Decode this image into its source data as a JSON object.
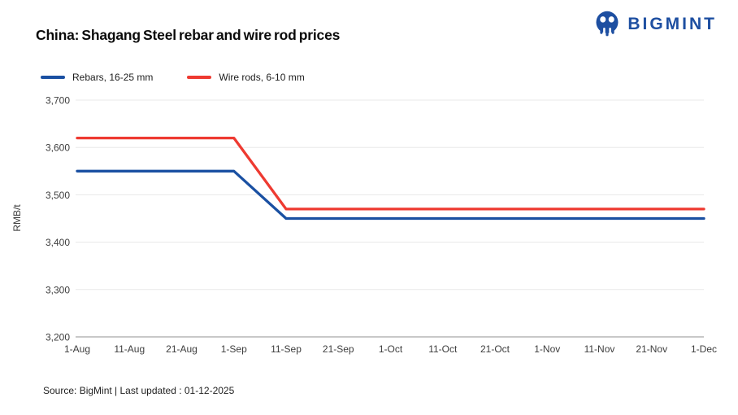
{
  "header": {
    "title": "China: Shagang Steel rebar and wire rod prices",
    "logo_text": "BIGMINT",
    "logo_color": "#1e4fa1"
  },
  "chart_data": {
    "type": "line",
    "title": "China: Shagang Steel rebar and wire rod prices",
    "xlabel": "",
    "ylabel": "RMB/t",
    "x": [
      "1-Aug",
      "11-Aug",
      "21-Aug",
      "1-Sep",
      "11-Sep",
      "21-Sep",
      "1-Oct",
      "11-Oct",
      "21-Oct",
      "1-Nov",
      "11-Nov",
      "21-Nov",
      "1-Dec"
    ],
    "ylim": [
      3200,
      3700
    ],
    "ytick_step": 100,
    "ytick_labels": [
      "3,200",
      "3,300",
      "3,400",
      "3,500",
      "3,600",
      "3,700"
    ],
    "grid": "horizontal",
    "legend_position": "top-left",
    "colors": {
      "gridline": "#e8e8e8",
      "axis_line": "#a8a8a8",
      "tick_text": "#3d3d3d"
    },
    "series": [
      {
        "name": "Rebars, 16-25 mm",
        "color": "#1a50a2",
        "values": [
          3550,
          3550,
          3550,
          3550,
          3450,
          3450,
          3450,
          3450,
          3450,
          3450,
          3450,
          3450,
          3450
        ]
      },
      {
        "name": "Wire rods, 6-10 mm",
        "color": "#ee3a31",
        "values": [
          3620,
          3620,
          3620,
          3620,
          3470,
          3470,
          3470,
          3470,
          3470,
          3470,
          3470,
          3470,
          3470
        ]
      }
    ]
  },
  "footer": {
    "source": "Source: BigMint | Last updated : 01-12-2025"
  }
}
